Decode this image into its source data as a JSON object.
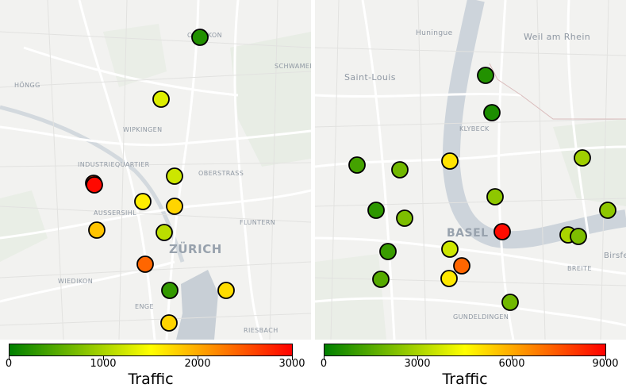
{
  "maps": [
    {
      "id": "zurich",
      "places": [
        {
          "text": "OERLIKON"
        },
        {
          "text": "SCHWAMEN"
        },
        {
          "text": "HÖNGG"
        },
        {
          "text": "WIPKINGEN"
        },
        {
          "text": "INDUSTRIEQUARTIER"
        },
        {
          "text": "OBERSTRASS"
        },
        {
          "text": "AUSSERSIHL"
        },
        {
          "text": "FLUNTERN"
        },
        {
          "text": "ZÜRICH"
        },
        {
          "text": "WIEDIKON"
        },
        {
          "text": "ENGE"
        },
        {
          "text": "RIESBACH"
        }
      ],
      "colorbar": {
        "title": "Traffic",
        "min": 0,
        "max": 3000,
        "ticks": [
          "0",
          "1000",
          "2000",
          "3000"
        ],
        "colors": [
          "#008000",
          "#ffff00",
          "#ff0000"
        ]
      },
      "points": [
        {
          "traffic": 200
        },
        {
          "traffic": 1300
        },
        {
          "traffic": 1200
        },
        {
          "traffic": 2700
        },
        {
          "traffic": 2950
        },
        {
          "traffic": 1600
        },
        {
          "traffic": 1750
        },
        {
          "traffic": 1850
        },
        {
          "traffic": 1100
        },
        {
          "traffic": 2400
        },
        {
          "traffic": 300
        },
        {
          "traffic": 1700
        },
        {
          "traffic": 1750
        }
      ]
    },
    {
      "id": "basel",
      "places": [
        {
          "text": "Huningue"
        },
        {
          "text": "Weil am Rhein"
        },
        {
          "text": "Saint-Louis"
        },
        {
          "text": "KLYBECK"
        },
        {
          "text": "BASEL"
        },
        {
          "text": "Birsfe"
        },
        {
          "text": "BREITE"
        },
        {
          "text": "GUNDELDINGEN"
        }
      ],
      "colorbar": {
        "title": "Traffic",
        "min": 0,
        "max": 9000,
        "ticks": [
          "0",
          "3000",
          "6000",
          "9000"
        ],
        "colors": [
          "#008000",
          "#ffff00",
          "#ff0000"
        ]
      },
      "points": [
        {
          "traffic": 600
        },
        {
          "traffic": 500
        },
        {
          "traffic": 1200
        },
        {
          "traffic": 2000
        },
        {
          "traffic": 5000
        },
        {
          "traffic": 2800
        },
        {
          "traffic": 2500
        },
        {
          "traffic": 800
        },
        {
          "traffic": 2200
        },
        {
          "traffic": 8800
        },
        {
          "traffic": 2500
        },
        {
          "traffic": 3000
        },
        {
          "traffic": 2200
        },
        {
          "traffic": 1000
        },
        {
          "traffic": 3600
        },
        {
          "traffic": 7200
        },
        {
          "traffic": 4900
        },
        {
          "traffic": 1500
        },
        {
          "traffic": 2000
        }
      ]
    }
  ]
}
